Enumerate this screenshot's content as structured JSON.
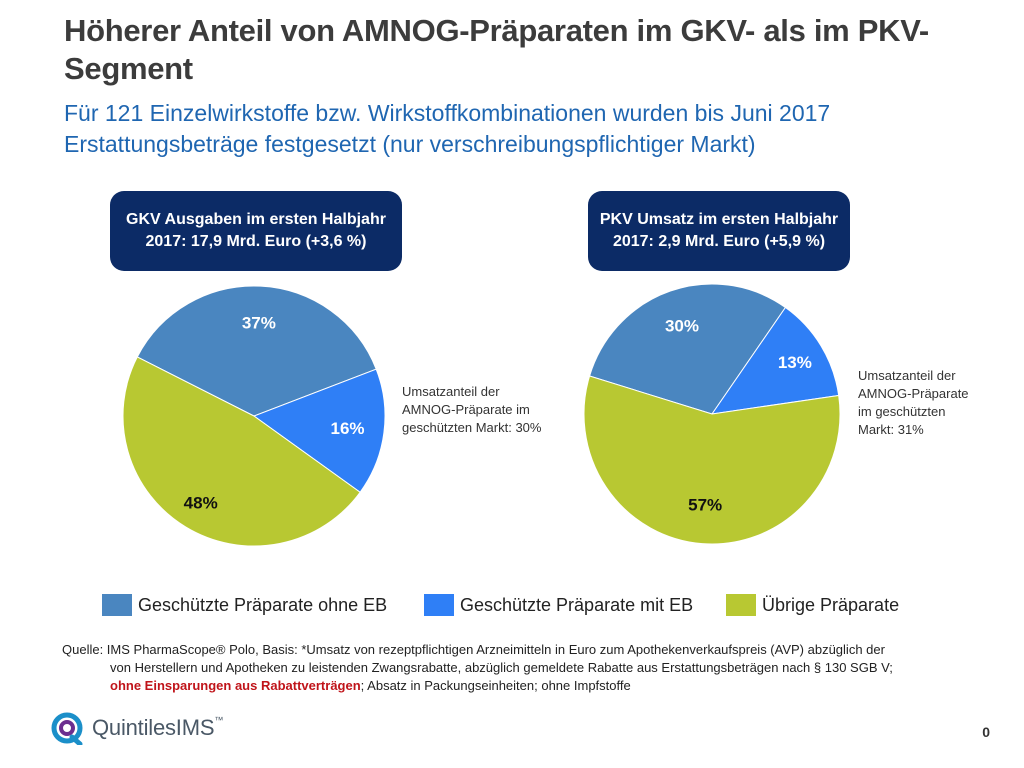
{
  "title": "Höherer Anteil von AMNOG-Präparaten im GKV- als im PKV-Segment",
  "subtitle": "Für 121 Einzelwirkstoffe bzw. Wirkstoffkombinationen wurden bis Juni 2017 Erstattungsbeträge festgesetzt (nur verschreibungspflichtiger Markt)",
  "colors": {
    "protected_no_eb": "#4a86c0",
    "protected_eb": "#2f7ff6",
    "other": "#b8c832",
    "box": "#0c2b66"
  },
  "chart_data": [
    {
      "type": "pie",
      "title": "GKV Ausgaben im ersten Halbjahr 2017: 17,9 Mrd. Euro (+3,6 %)",
      "categories": [
        "Geschützte Präparate ohne EB",
        "Geschützte Präparate mit EB",
        "Übrige Präparate"
      ],
      "values": [
        37,
        16,
        48
      ],
      "labels": [
        "37%",
        "16%",
        "48%"
      ],
      "note": "Umsatzanteil der AMNOG-Präparate im geschützten Markt: 30%"
    },
    {
      "type": "pie",
      "title": "PKV Umsatz im ersten Halbjahr 2017: 2,9 Mrd. Euro (+5,9 %)",
      "categories": [
        "Geschützte Präparate ohne EB",
        "Geschützte Präparate mit EB",
        "Übrige Präparate"
      ],
      "values": [
        30,
        13,
        57
      ],
      "labels": [
        "30%",
        "13%",
        "57%"
      ],
      "note": "Umsatzanteil der AMNOG-Präparate im geschützten Markt: 31%"
    }
  ],
  "legend": {
    "items": [
      "Geschützte Präparate ohne EB",
      "Geschützte Präparate mit EB",
      "Übrige Präparate"
    ]
  },
  "source": {
    "line1": "Quelle: IMS PharmaScope® Polo, Basis: *Umsatz von rezeptpflichtigen Arzneimitteln in Euro zum Apothekenverkaufspreis (AVP) abzüglich der",
    "line2": "von Herstellern und Apotheken zu leistenden Zwangsrabatte, abzüglich gemeldete Rabatte aus Erstattungsbeträgen nach  § 130 SGB V;",
    "line3_red": "ohne Einsparungen aus Rabattverträgen",
    "line3_rest": "; Absatz in Packungseinheiten; ohne Impfstoffe"
  },
  "logo": {
    "text": "QuintilesIMS",
    "tm": "™"
  },
  "page_number": "0"
}
